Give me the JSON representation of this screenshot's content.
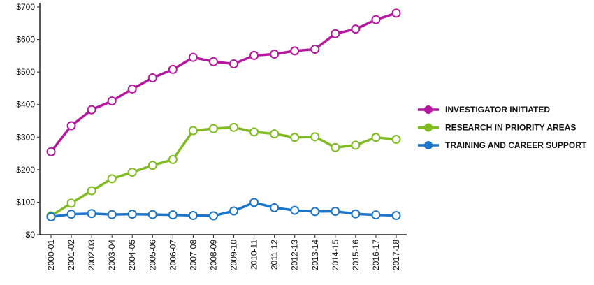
{
  "chart_data": {
    "type": "line",
    "categories": [
      "2000-01",
      "2001-02",
      "2002-03",
      "2003-04",
      "2004-05",
      "2005-06",
      "2006-07",
      "2007-08",
      "2008-09",
      "2009-10",
      "2010-11",
      "2011-12",
      "2012-13",
      "2013-14",
      "2014-15",
      "2015-16",
      "2016-17",
      "2017-18"
    ],
    "series": [
      {
        "name": "INVESTIGATOR INITIATED",
        "color": "#b5179e",
        "values": [
          255,
          335,
          384,
          411,
          448,
          482,
          508,
          545,
          532,
          525,
          551,
          555,
          565,
          570,
          618,
          632,
          661,
          681
        ]
      },
      {
        "name": "RESEARCH IN PRIORITY AREAS",
        "color": "#80bc1f",
        "values": [
          58,
          97,
          135,
          172,
          192,
          213,
          231,
          320,
          326,
          330,
          316,
          310,
          299,
          301,
          268,
          275,
          299,
          293
        ]
      },
      {
        "name": "TRAINING AND CAREER SUPPORT",
        "color": "#1b75cb",
        "values": [
          55,
          63,
          65,
          62,
          63,
          62,
          61,
          59,
          58,
          73,
          99,
          83,
          75,
          71,
          72,
          64,
          61,
          59
        ]
      }
    ],
    "ylim": [
      0,
      700
    ],
    "yticks": [
      {
        "value": 0,
        "label": "$0"
      },
      {
        "value": 100,
        "label": "$100"
      },
      {
        "value": 200,
        "label": "$200"
      },
      {
        "value": 300,
        "label": "$300"
      },
      {
        "value": 400,
        "label": "$400"
      },
      {
        "value": 500,
        "label": "$500"
      },
      {
        "value": 600,
        "label": "$600"
      },
      {
        "value": 700,
        "label": "$700"
      }
    ],
    "legend": "right"
  }
}
